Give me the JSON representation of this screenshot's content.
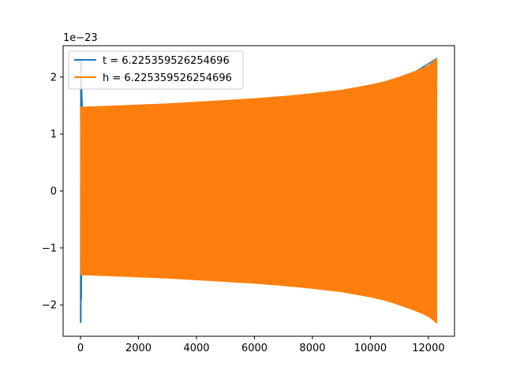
{
  "chart_data": {
    "type": "line",
    "title": "",
    "xlabel": "",
    "ylabel": "",
    "xlim": [
      -600,
      12900
    ],
    "ylim": [
      -2.55,
      2.55
    ],
    "y_scale_label": "1e−23",
    "x_ticks": [
      0,
      2000,
      4000,
      6000,
      8000,
      10000,
      12000
    ],
    "x_tick_labels": [
      "0",
      "2000",
      "4000",
      "6000",
      "8000",
      "10000",
      "12000"
    ],
    "y_ticks": [
      2,
      1,
      0,
      -1,
      -2
    ],
    "y_tick_labels": [
      "2",
      "1",
      "0",
      "−1",
      "−2"
    ],
    "grid": false,
    "legend_position": "top-left",
    "series": [
      {
        "name": "t = 6.225359526254696",
        "color": "#1f77b4",
        "x": [
          0,
          8,
          16,
          24,
          32,
          40,
          60,
          100,
          12280,
          12288
        ],
        "y": [
          -2.32,
          2.32,
          -2.3,
          2.28,
          -1.9,
          1.8,
          1.47,
          -1.47,
          2.32,
          1.95
        ]
      },
      {
        "name": "h = 6.225359526254696",
        "color": "#ff7f0e",
        "envelope_x": [
          0,
          1000,
          2000,
          3000,
          4000,
          5000,
          6000,
          7000,
          8000,
          9000,
          10000,
          10500,
          11000,
          11500,
          12000,
          12288
        ],
        "envelope_upper": [
          1.47,
          1.49,
          1.51,
          1.53,
          1.56,
          1.59,
          1.62,
          1.66,
          1.71,
          1.77,
          1.86,
          1.92,
          2.0,
          2.09,
          2.2,
          2.32
        ],
        "envelope_lower": [
          -1.47,
          -1.49,
          -1.51,
          -1.53,
          -1.56,
          -1.59,
          -1.62,
          -1.66,
          -1.71,
          -1.77,
          -1.86,
          -1.92,
          -2.0,
          -2.09,
          -2.2,
          -2.32
        ],
        "oscillation_cycles": 220
      }
    ]
  }
}
